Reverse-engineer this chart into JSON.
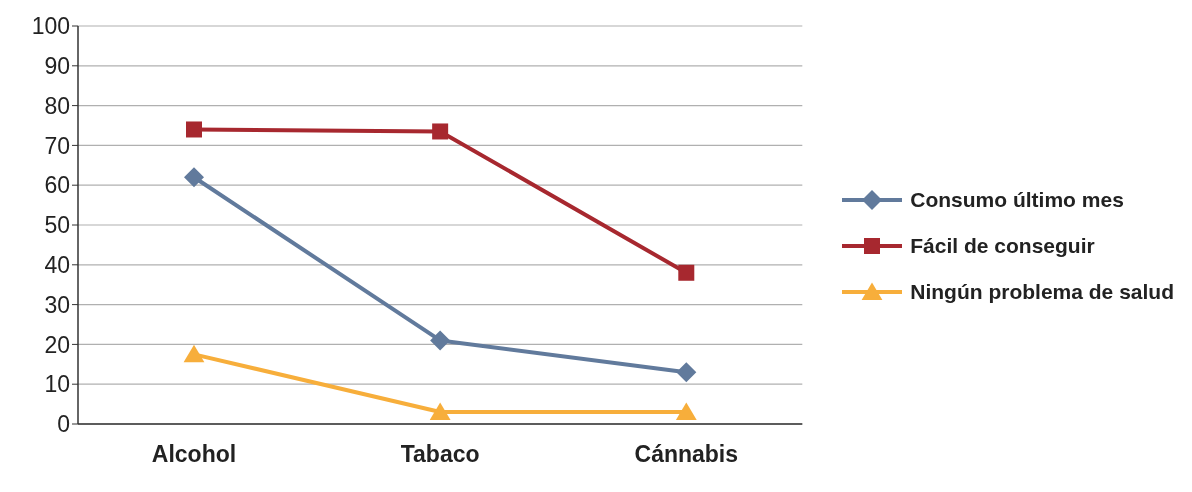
{
  "chart_data": {
    "type": "line",
    "categories": [
      "Alcohol",
      "Tabaco",
      "Cánnabis"
    ],
    "series": [
      {
        "name": "Consumo último mes",
        "color": "#617a9c",
        "values": [
          62,
          21,
          13
        ],
        "marker": "diamond"
      },
      {
        "name": "Fácil de conseguir",
        "color": "#a7282f",
        "values": [
          74,
          73.5,
          38
        ],
        "marker": "square"
      },
      {
        "name": "Ningún problema de salud",
        "color": "#f7ae3b",
        "values": [
          17.5,
          3,
          3
        ],
        "marker": "triangle"
      }
    ],
    "ylim": [
      0,
      100
    ],
    "yticks": [
      0,
      10,
      20,
      30,
      40,
      50,
      60,
      70,
      80,
      90,
      100
    ],
    "grid": "y",
    "legend": "right",
    "line_style": "solid"
  }
}
